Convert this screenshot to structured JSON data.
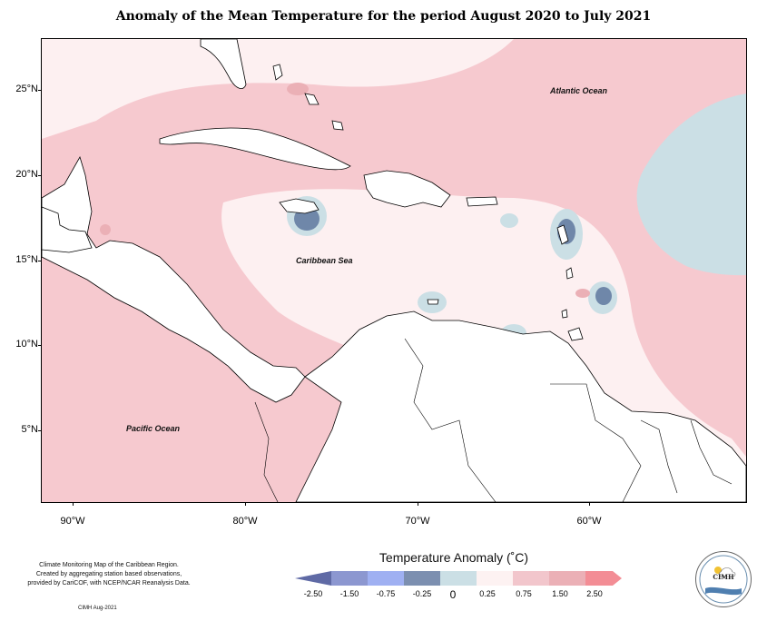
{
  "title": "Anomaly of the Mean Temperature for the period August 2020 to July 2021",
  "axes": {
    "lat_labels": [
      "25°N",
      "20°N",
      "15°N",
      "10°N",
      "5°N"
    ],
    "lon_labels": [
      "90°W",
      "80°W",
      "70°W",
      "60°W"
    ]
  },
  "places": {
    "atlantic": "Atlantic Ocean",
    "caribbean": "Caribbean Sea",
    "pacific": "Pacific Ocean"
  },
  "legend": {
    "title": "Temperature Anomaly (˚C)",
    "labels": [
      "-2.50",
      "-1.50",
      "-0.75",
      "-0.25",
      "0",
      "0.25",
      "0.75",
      "1.50",
      "2.50"
    ],
    "colors": [
      "#5f6aa5",
      "#8c97d0",
      "#9fb0f2",
      "#7c8fb0",
      "#cbdfe5",
      "#fdf2f2",
      "#f2c6cc",
      "#ebb0b6",
      "#f38d95"
    ]
  },
  "credits": {
    "line1": "Climate Monitoring Map of the Caribbean Region.",
    "line2": "Created by aggregating station based observations,",
    "line3": "provided by CariCOF, with NCEP/NCAR Reanalysis Data.",
    "stamp": "CIMH Aug-2021"
  },
  "logo": {
    "text": "CIMH"
  },
  "colors": {
    "warm_light": "#fde9ea",
    "warm": "#f6c9cf",
    "neutral": "#fdf2f2",
    "cool_light": "#cbdfe5",
    "cool": "#a9c2d3",
    "cool_dark": "#6f87a9",
    "land": "#ffffff"
  }
}
